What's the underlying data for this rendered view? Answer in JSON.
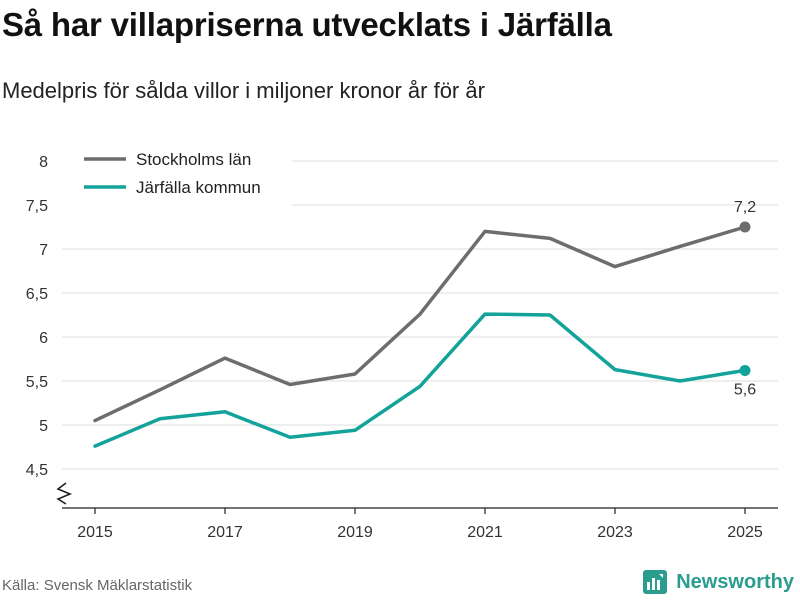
{
  "title": "Så har villapriserna utvecklats i Järfälla",
  "subtitle": "Medelpris för sålda villor i miljoner kronor år för år",
  "source": "Källa: Svensk Mäklarstatistik",
  "brand": "Newsworthy",
  "colors": {
    "stockholm": "#6d6d6d",
    "jarfalla": "#14a39a",
    "grid": "#dcdcdc",
    "axis": "#222222",
    "brand": "#2a9d8f"
  },
  "chart_data": {
    "type": "line",
    "title": "Så har villapriserna utvecklats i Järfälla",
    "subtitle": "Medelpris för sålda villor i miljoner kronor år för år",
    "xlabel": "",
    "ylabel": "",
    "x": [
      2015,
      2016,
      2017,
      2018,
      2019,
      2020,
      2021,
      2022,
      2023,
      2024,
      2025
    ],
    "xticks": [
      "2015",
      "2017",
      "2019",
      "2021",
      "2023",
      "2025"
    ],
    "xtick_values": [
      2015,
      2017,
      2019,
      2021,
      2023,
      2025
    ],
    "ylim": [
      4.5,
      8
    ],
    "yticks": [
      "4,5",
      "5",
      "5,5",
      "6",
      "6,5",
      "7",
      "7,5",
      "8"
    ],
    "ytick_values": [
      4.5,
      5,
      5.5,
      6,
      6.5,
      7,
      7.5,
      8
    ],
    "grid": true,
    "legend_position": "top-left",
    "series": [
      {
        "name": "Stockholms län",
        "color_key": "stockholm",
        "values": [
          5.05,
          5.4,
          5.76,
          5.46,
          5.58,
          6.26,
          7.2,
          7.12,
          6.8,
          7.03,
          7.25
        ],
        "end_label": "7,2",
        "end_label_position": "above"
      },
      {
        "name": "Järfälla kommun",
        "color_key": "jarfalla",
        "values": [
          4.76,
          5.07,
          5.15,
          4.86,
          4.94,
          5.44,
          6.26,
          6.25,
          5.63,
          5.5,
          5.62
        ],
        "end_label": "5,6",
        "end_label_position": "below"
      }
    ]
  }
}
